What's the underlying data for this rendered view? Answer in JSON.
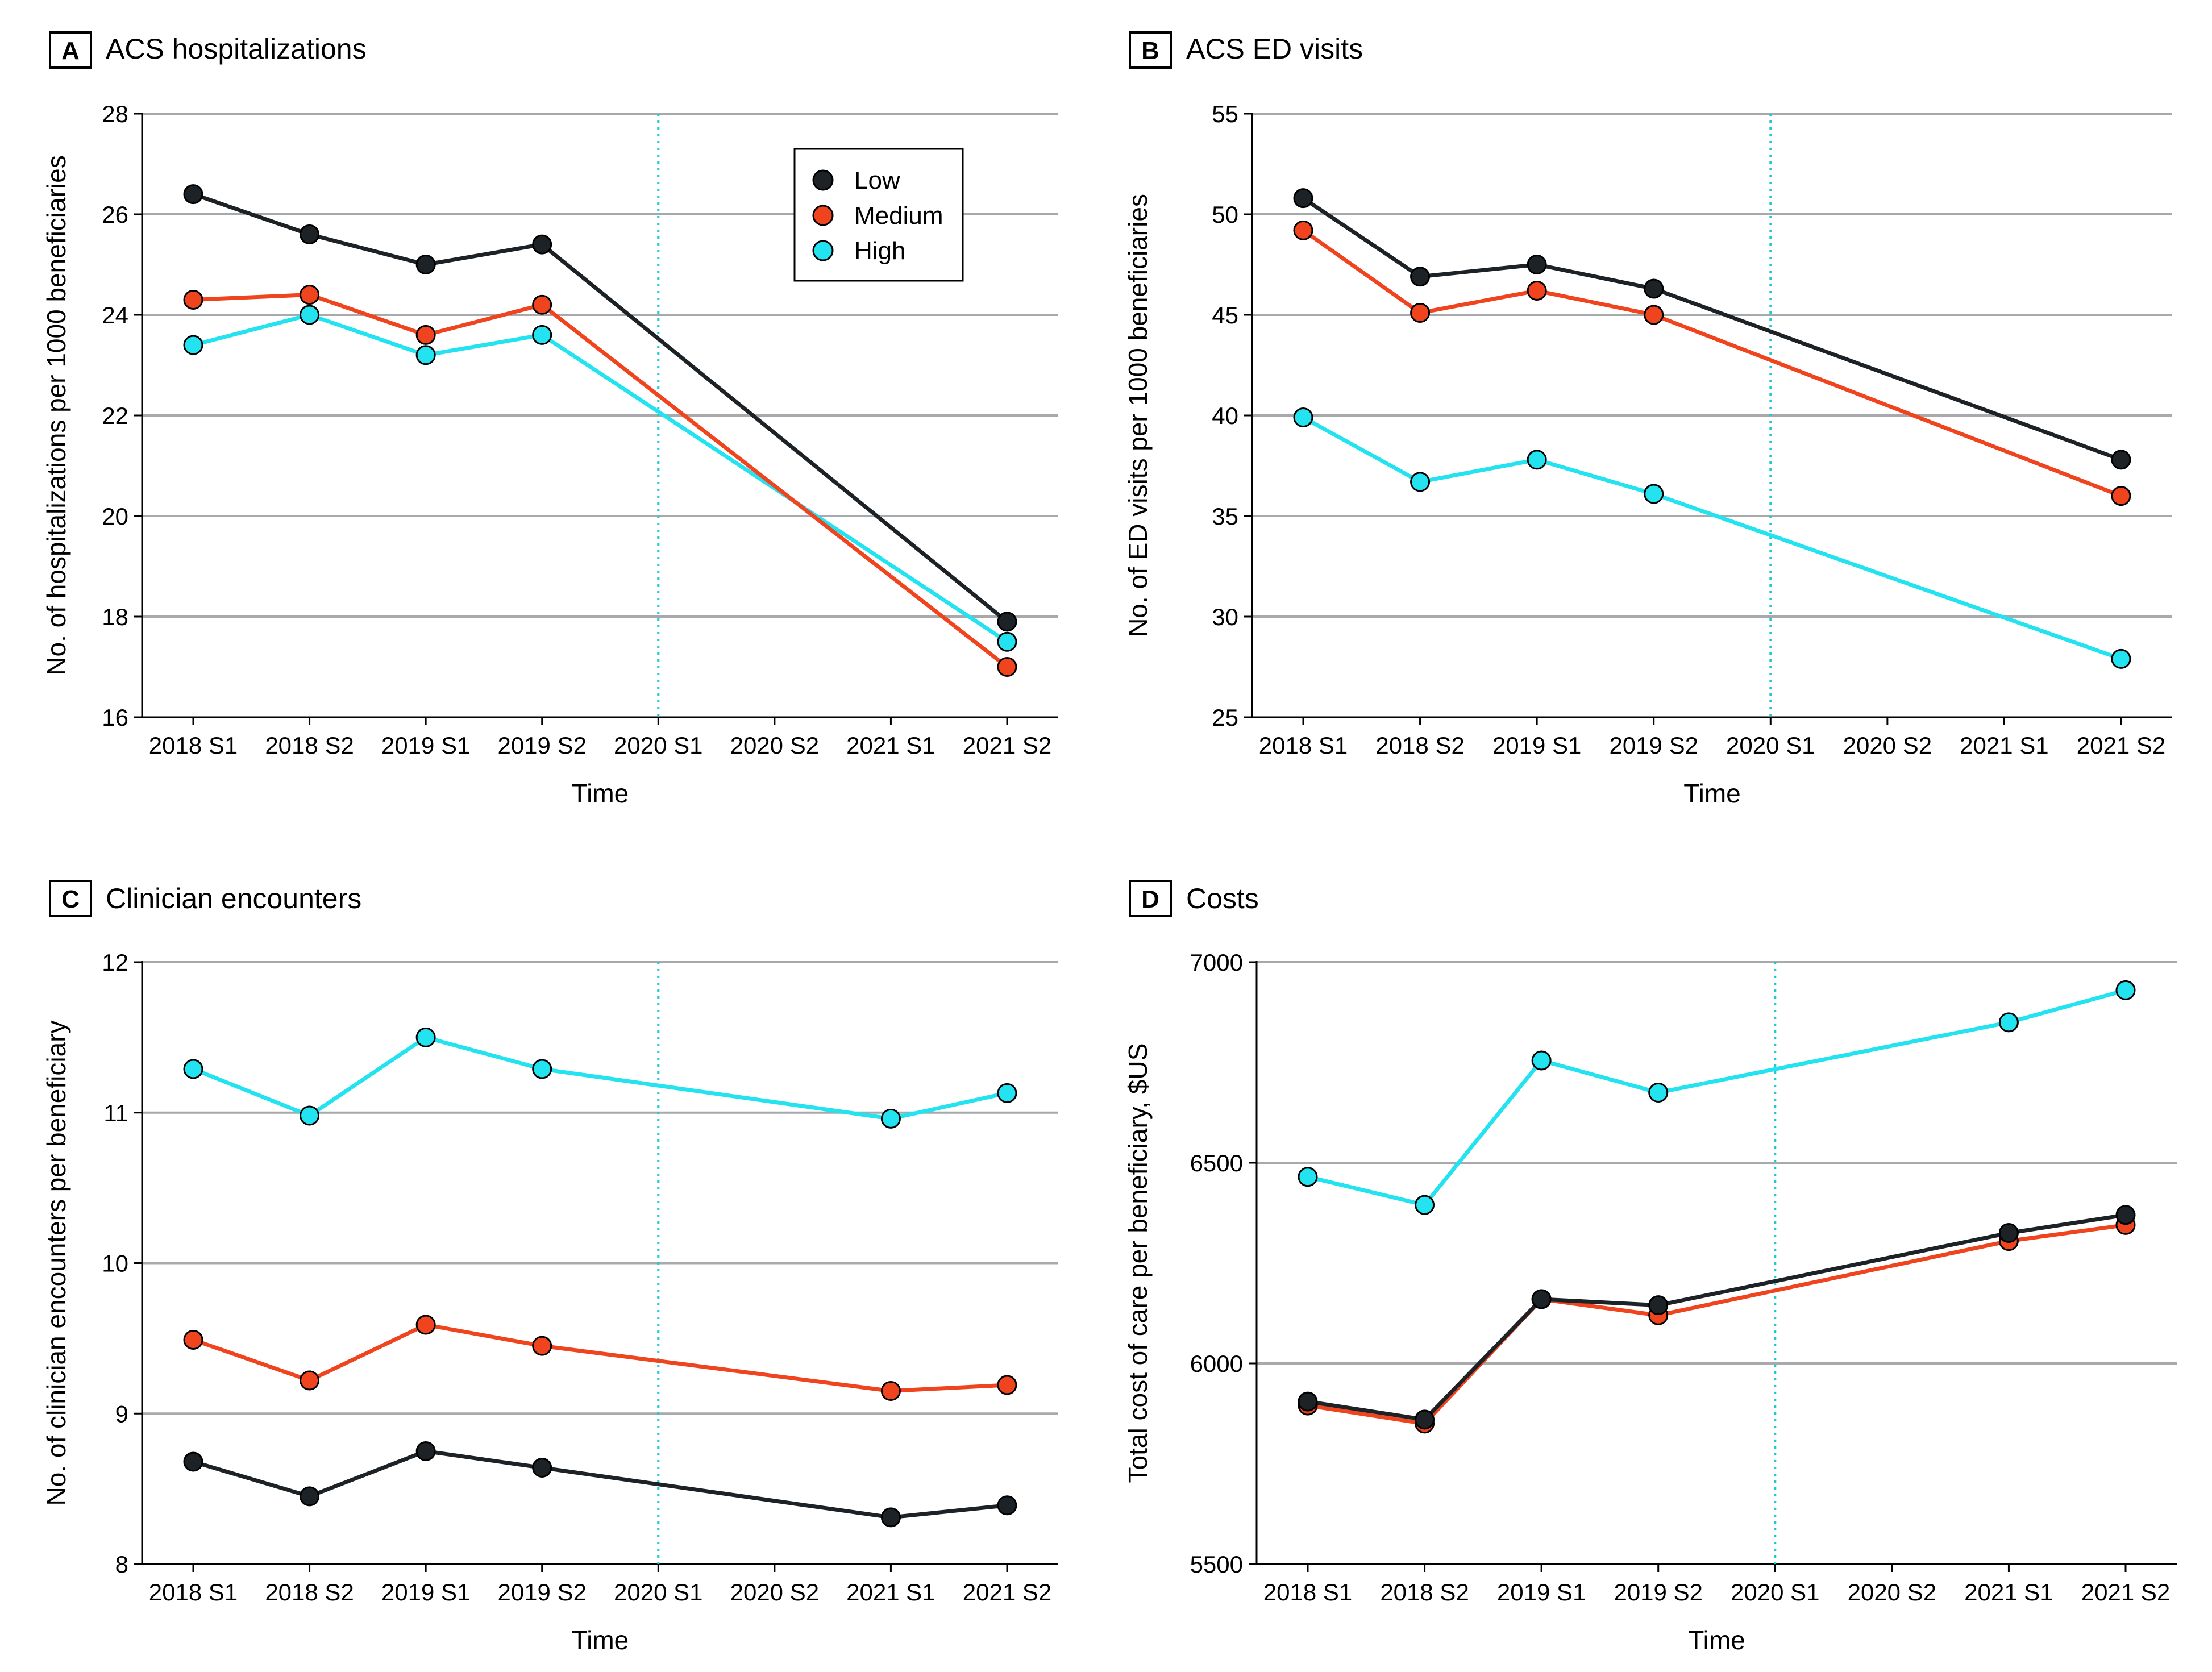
{
  "chart_data": [
    {
      "type": "line",
      "panel_letter": "A",
      "title": "ACS hospitalizations",
      "xlabel": "Time",
      "ylabel": "No. of hospitalizations per 1000 beneficiaries",
      "categories": [
        "2018 S1",
        "2018 S2",
        "2019 S1",
        "2019 S2",
        "2020 S1",
        "2020 S2",
        "2021 S1",
        "2021 S2"
      ],
      "yticks": [
        16,
        18,
        20,
        22,
        24,
        26,
        28
      ],
      "ylim": [
        16,
        28
      ],
      "reference_category": "2020 S1",
      "legend": true,
      "legend_position": "top-right",
      "series": [
        {
          "name": "Low",
          "color": "#1c2226",
          "values": [
            26.4,
            25.6,
            25.0,
            25.4,
            null,
            null,
            null,
            17.9
          ]
        },
        {
          "name": "Medium",
          "color": "#f0441f",
          "values": [
            24.3,
            24.4,
            23.6,
            24.2,
            null,
            null,
            null,
            17.0
          ]
        },
        {
          "name": "High",
          "color": "#22e3ef",
          "values": [
            23.4,
            24.0,
            23.2,
            23.6,
            null,
            null,
            null,
            17.5
          ]
        }
      ]
    },
    {
      "type": "line",
      "panel_letter": "B",
      "title": "ACS ED visits",
      "xlabel": "Time",
      "ylabel": "No. of ED visits per 1000 beneficiaries",
      "categories": [
        "2018 S1",
        "2018 S2",
        "2019 S1",
        "2019 S2",
        "2020 S1",
        "2020 S2",
        "2021 S1",
        "2021 S2"
      ],
      "yticks": [
        25,
        30,
        35,
        40,
        45,
        50,
        55
      ],
      "ylim": [
        25,
        55
      ],
      "reference_category": "2020 S1",
      "legend": false,
      "series": [
        {
          "name": "Low",
          "color": "#1c2226",
          "values": [
            50.8,
            46.9,
            47.5,
            46.3,
            null,
            null,
            null,
            37.8
          ]
        },
        {
          "name": "Medium",
          "color": "#f0441f",
          "values": [
            49.2,
            45.1,
            46.2,
            45.0,
            null,
            null,
            null,
            36.0
          ]
        },
        {
          "name": "High",
          "color": "#22e3ef",
          "values": [
            39.9,
            36.7,
            37.8,
            36.1,
            null,
            null,
            null,
            27.9
          ]
        }
      ]
    },
    {
      "type": "line",
      "panel_letter": "C",
      "title": "Clinician encounters",
      "xlabel": "Time",
      "ylabel": "No. of clinician encounters per beneficiary",
      "categories": [
        "2018 S1",
        "2018 S2",
        "2019 S1",
        "2019 S2",
        "2020 S1",
        "2020 S2",
        "2021 S1",
        "2021 S2"
      ],
      "yticks": [
        8,
        9,
        10,
        11,
        12
      ],
      "ylim": [
        8,
        12
      ],
      "reference_category": "2020 S1",
      "legend": false,
      "series": [
        {
          "name": "Low",
          "color": "#1c2226",
          "values": [
            8.68,
            8.45,
            8.75,
            8.64,
            null,
            null,
            8.31,
            8.39
          ]
        },
        {
          "name": "Medium",
          "color": "#f0441f",
          "values": [
            9.49,
            9.22,
            9.59,
            9.45,
            null,
            null,
            9.15,
            9.19
          ]
        },
        {
          "name": "High",
          "color": "#22e3ef",
          "values": [
            11.29,
            10.98,
            11.5,
            11.29,
            null,
            null,
            10.96,
            11.13
          ]
        }
      ]
    },
    {
      "type": "line",
      "panel_letter": "D",
      "title": "Costs",
      "xlabel": "Time",
      "ylabel": "Total cost of care per beneficiary, $US",
      "categories": [
        "2018 S1",
        "2018 S2",
        "2019 S1",
        "2019 S2",
        "2020 S1",
        "2020 S2",
        "2021 S1",
        "2021 S2"
      ],
      "yticks": [
        5500,
        6000,
        6500,
        7000
      ],
      "ylim": [
        5500,
        7000
      ],
      "reference_category": "2020 S1",
      "legend": false,
      "series": [
        {
          "name": "Low",
          "color": "#1c2226",
          "values": [
            5905,
            5860,
            6160,
            6145,
            null,
            null,
            6325,
            6370
          ]
        },
        {
          "name": "Medium",
          "color": "#f0441f",
          "values": [
            5895,
            5850,
            6160,
            6120,
            null,
            null,
            6305,
            6345
          ]
        },
        {
          "name": "High",
          "color": "#22e3ef",
          "values": [
            6465,
            6395,
            6755,
            6675,
            null,
            null,
            6850,
            6930
          ]
        }
      ]
    }
  ]
}
